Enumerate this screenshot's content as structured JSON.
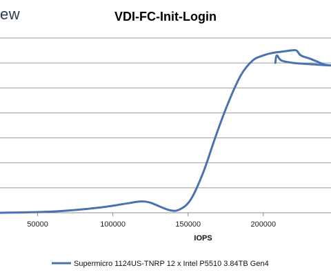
{
  "brand": {
    "text": "ew"
  },
  "chart_data": {
    "type": "line",
    "title": "VDI-FC-Init-Login",
    "xlabel": "IOPS",
    "ylabel": "",
    "xlim": [
      25000,
      245000
    ],
    "ylim": [
      0,
      7
    ],
    "x_ticks": [
      50000,
      100000,
      150000,
      200000
    ],
    "grid": true,
    "legend_position": "bottom",
    "series": [
      {
        "name": "Supermicro 1124US-TNRP 12 x Intel P5510 3.84TB Gen4",
        "color": "#4a72b0",
        "points": [
          [
            25000,
            0.0
          ],
          [
            60000,
            0.05
          ],
          [
            90000,
            0.2
          ],
          [
            110000,
            0.38
          ],
          [
            118000,
            0.45
          ],
          [
            125000,
            0.4
          ],
          [
            138000,
            0.1
          ],
          [
            145000,
            0.15
          ],
          [
            152000,
            0.55
          ],
          [
            160000,
            1.6
          ],
          [
            168000,
            3.0
          ],
          [
            176000,
            4.3
          ],
          [
            185000,
            5.5
          ],
          [
            193000,
            6.1
          ],
          [
            200000,
            6.3
          ],
          [
            206000,
            6.4
          ],
          [
            212000,
            6.45
          ],
          [
            218000,
            6.5
          ],
          [
            222000,
            6.5
          ],
          [
            225000,
            6.3
          ],
          [
            232000,
            6.15
          ],
          [
            240000,
            5.95
          ],
          [
            245000,
            5.9
          ],
          [
            232000,
            5.95
          ],
          [
            220000,
            6.0
          ],
          [
            212000,
            6.1
          ],
          [
            209000,
            6.3
          ],
          [
            208000,
            6.0
          ]
        ]
      }
    ]
  }
}
